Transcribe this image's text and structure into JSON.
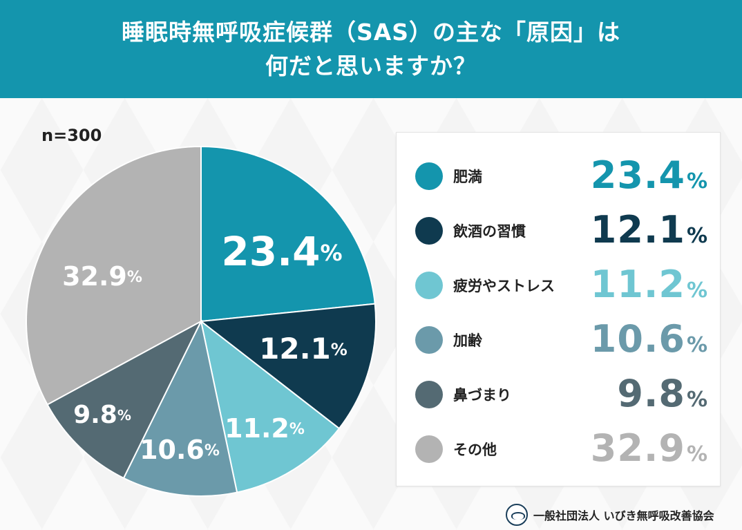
{
  "header": {
    "title_line1": "睡眠時無呼吸症候群（SAS）の主な「原因」は",
    "title_line2": "何だと思いますか？"
  },
  "sample_size": "n=300",
  "colors": {
    "header_bg": "#1495ad"
  },
  "chart_data": {
    "type": "pie",
    "title": "睡眠時無呼吸症候群（SAS）の主な「原因」は何だと思いますか？",
    "unit": "%",
    "slices": [
      {
        "label": "肥満",
        "value": 23.4,
        "display": "23.4",
        "color": "#1495ad",
        "text_color": "#1495ad"
      },
      {
        "label": "飲酒の習慣",
        "value": 12.1,
        "display": "12.1",
        "color": "#0f3a4f",
        "text_color": "#0f3a4f"
      },
      {
        "label": "疲労やストレス",
        "value": 11.2,
        "display": "11.2",
        "color": "#6fc6d2",
        "text_color": "#6fc6d2"
      },
      {
        "label": "加齢",
        "value": 10.6,
        "display": "10.6",
        "color": "#6b9aaa",
        "text_color": "#6b9aaa"
      },
      {
        "label": "鼻づまり",
        "value": 9.8,
        "display": "9.8",
        "color": "#546a73",
        "text_color": "#546a73"
      },
      {
        "label": "その他",
        "value": 32.9,
        "display": "32.9",
        "color": "#b3b3b3",
        "text_color": "#b3b3b3"
      }
    ]
  },
  "footer": {
    "org": "一般社団法人 いびき無呼吸改善協会",
    "logo_icon": "sleeping-face-icon"
  }
}
